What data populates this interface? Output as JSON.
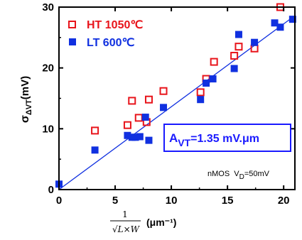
{
  "chart_data": {
    "type": "scatter",
    "xlim": [
      0,
      21
    ],
    "ylim": [
      0,
      30
    ],
    "x_ticks": [
      "0",
      "5",
      "10",
      "15",
      "20"
    ],
    "y_ticks": [
      "0",
      "10",
      "20",
      "30"
    ],
    "ylabel": {
      "main": "σ",
      "sub": "ΔVT",
      "unit": "(mV)"
    },
    "xlabel": {
      "numerator": "1",
      "denominator": "√L×W",
      "unit": "(μm⁻¹)"
    },
    "series": [
      {
        "name": "HT 1050℃",
        "marker": "open-square",
        "color": "#e8141b",
        "points": [
          [
            3.2,
            9.7
          ],
          [
            6.1,
            10.6
          ],
          [
            6.5,
            14.6
          ],
          [
            7.1,
            11.8
          ],
          [
            7.8,
            11.1
          ],
          [
            8.0,
            14.8
          ],
          [
            9.3,
            16.2
          ],
          [
            12.6,
            16.0
          ],
          [
            13.1,
            18.2
          ],
          [
            13.8,
            21.0
          ],
          [
            15.6,
            22.0
          ],
          [
            16.0,
            23.5
          ],
          [
            17.4,
            23.2
          ],
          [
            19.7,
            30.0
          ]
        ]
      },
      {
        "name": "LT 600℃",
        "marker": "filled-square",
        "color": "#1030e0",
        "points": [
          [
            0.0,
            0.9
          ],
          [
            3.2,
            6.5
          ],
          [
            6.1,
            8.9
          ],
          [
            6.5,
            8.6
          ],
          [
            6.8,
            8.6
          ],
          [
            7.2,
            8.7
          ],
          [
            7.7,
            11.9
          ],
          [
            8.0,
            8.1
          ],
          [
            9.3,
            13.5
          ],
          [
            12.6,
            14.8
          ],
          [
            13.1,
            17.5
          ],
          [
            13.7,
            18.2
          ],
          [
            15.6,
            19.9
          ],
          [
            16.0,
            25.5
          ],
          [
            17.4,
            24.2
          ],
          [
            19.2,
            27.4
          ],
          [
            19.7,
            26.7
          ],
          [
            20.8,
            28.0
          ]
        ]
      }
    ],
    "fit_line": {
      "x": [
        0,
        21
      ],
      "y": [
        0,
        28.6
      ],
      "color": "#1030e0"
    },
    "annotations": {
      "avt_main": "A",
      "avt_sub": "VT",
      "avt_value": "=1.35 mV.μm",
      "condition_main": "nMOS  V",
      "condition_sub": "D",
      "condition_value": "=50mV"
    },
    "legend_position": "top-left",
    "grid": false
  }
}
